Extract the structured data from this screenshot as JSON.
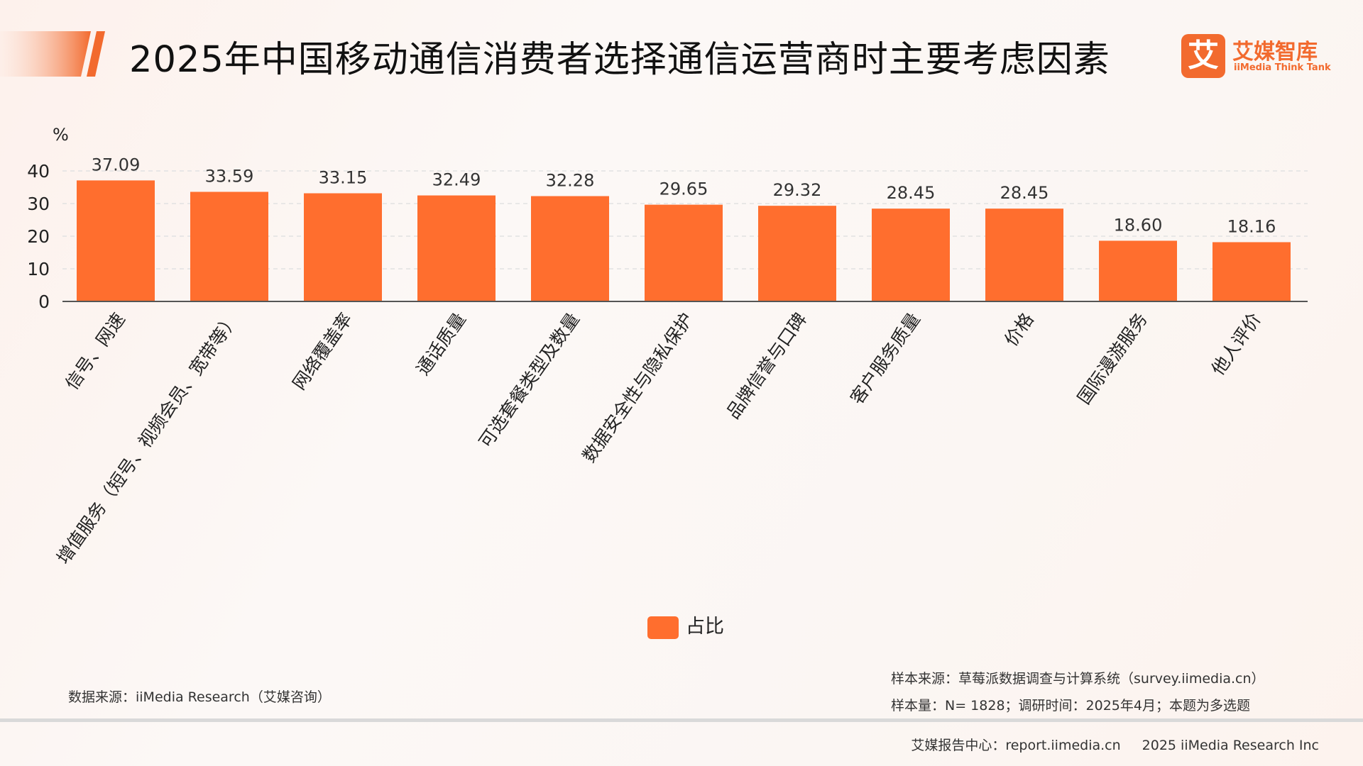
{
  "header": {
    "title": "2025年中国移动通信消费者选择通信运营商时主要考虑因素"
  },
  "logo": {
    "mark_glyph": "艾",
    "name_cn": "艾媒智库",
    "name_en": "iiMedia Think Tank"
  },
  "colors": {
    "bar": "#ff6e2e",
    "accent": "#f26a2e",
    "grid": "#e2e2e2",
    "axis": "#555555"
  },
  "chart_data": {
    "type": "bar",
    "unit_label": "%",
    "categories": [
      "信号、网速",
      "增值服务（短号、视频会员、宽带等）",
      "网络覆盖率",
      "通话质量",
      "可选套餐类型及数量",
      "数据安全性与隐私保护",
      "品牌信誉与口碑",
      "客户服务质量",
      "价格",
      "国际漫游服务",
      "他人评价"
    ],
    "series": [
      {
        "name": "占比",
        "values": [
          37.09,
          33.59,
          33.15,
          32.49,
          32.28,
          29.65,
          29.32,
          28.45,
          28.45,
          18.6,
          18.16
        ]
      }
    ],
    "value_labels": [
      "37.09",
      "33.59",
      "33.15",
      "32.49",
      "32.28",
      "29.65",
      "29.32",
      "28.45",
      "28.45",
      "18.60",
      "18.16"
    ],
    "ylim": [
      0,
      40
    ],
    "y_ticks": [
      "0",
      "10",
      "20",
      "30",
      "40"
    ],
    "grid": true,
    "legend_position": "bottom-center"
  },
  "footer": {
    "data_source": "数据来源：iiMedia Research（艾媒咨询）",
    "sample_source": "样本来源：草莓派数据调查与计算系统（survey.iimedia.cn）",
    "sample_size": "样本量：N= 1828；调研时间：2025年4月；本题为多选题",
    "report_center": "艾媒报告中心：report.iimedia.cn",
    "copyright": "2025 iiMedia Research Inc"
  }
}
